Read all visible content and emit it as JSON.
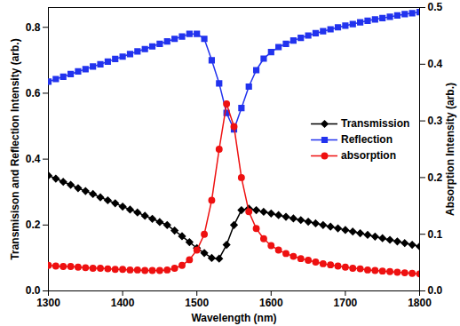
{
  "chart_data": {
    "type": "line",
    "x_label": "Wavelength (nm)",
    "y_label": "Transmisison and Reflection Intensity (arb.)",
    "y2_label": "Absorption Intensity (arb.)",
    "x": [
      1300,
      1310,
      1320,
      1330,
      1340,
      1350,
      1360,
      1370,
      1380,
      1390,
      1400,
      1410,
      1420,
      1430,
      1440,
      1450,
      1460,
      1470,
      1480,
      1490,
      1500,
      1510,
      1520,
      1530,
      1540,
      1550,
      1560,
      1570,
      1580,
      1590,
      1600,
      1610,
      1620,
      1630,
      1640,
      1650,
      1660,
      1670,
      1680,
      1690,
      1700,
      1710,
      1720,
      1730,
      1740,
      1750,
      1760,
      1770,
      1780,
      1790,
      1800
    ],
    "xlim": [
      1300,
      1800
    ],
    "xticks": [
      1300,
      1400,
      1500,
      1600,
      1700,
      1800
    ],
    "ylim": [
      0,
      0.86
    ],
    "yticks": [
      {
        "value": 0,
        "label": "0.0"
      },
      {
        "value": 0.2,
        "label": "0.2"
      },
      {
        "value": 0.4,
        "label": "0.4"
      },
      {
        "value": 0.6,
        "label": "0.6"
      },
      {
        "value": 0.8,
        "label": "0.8"
      }
    ],
    "y2lim": [
      0,
      0.5
    ],
    "y2ticks": [
      {
        "value": 0,
        "label": "0.0"
      },
      {
        "value": 0.1,
        "label": "0.1"
      },
      {
        "value": 0.2,
        "label": "0.2"
      },
      {
        "value": 0.3,
        "label": "0.3"
      },
      {
        "value": 0.4,
        "label": "0.4"
      },
      {
        "value": 0.5,
        "label": "0.5"
      }
    ],
    "legend": "right",
    "series": [
      {
        "name": "Transmission",
        "color": "#000000",
        "marker": "diamond",
        "values": [
          0.35,
          0.341,
          0.331,
          0.322,
          0.312,
          0.303,
          0.294,
          0.284,
          0.275,
          0.266,
          0.256,
          0.247,
          0.238,
          0.228,
          0.219,
          0.209,
          0.2,
          0.183,
          0.166,
          0.148,
          0.13,
          0.115,
          0.1,
          0.098,
          0.14,
          0.2,
          0.245,
          0.25,
          0.245,
          0.24,
          0.235,
          0.23,
          0.225,
          0.22,
          0.215,
          0.21,
          0.205,
          0.2,
          0.195,
          0.19,
          0.185,
          0.18,
          0.175,
          0.17,
          0.165,
          0.16,
          0.155,
          0.15,
          0.145,
          0.14,
          0.135
        ]
      },
      {
        "name": "Reflection",
        "color": "#2233ee",
        "marker": "square",
        "values": [
          0.635,
          0.643,
          0.65,
          0.658,
          0.666,
          0.673,
          0.681,
          0.688,
          0.696,
          0.704,
          0.711,
          0.719,
          0.727,
          0.734,
          0.742,
          0.75,
          0.757,
          0.765,
          0.772,
          0.78,
          0.78,
          0.765,
          0.7,
          0.63,
          0.54,
          0.49,
          0.555,
          0.62,
          0.67,
          0.705,
          0.725,
          0.74,
          0.75,
          0.76,
          0.768,
          0.775,
          0.782,
          0.788,
          0.794,
          0.8,
          0.805,
          0.81,
          0.815,
          0.82,
          0.824,
          0.828,
          0.832,
          0.836,
          0.84,
          0.843,
          0.846
        ]
      },
      {
        "name": "absorption",
        "color": "#ee1111",
        "marker": "circle",
        "axis": "y2",
        "values": [
          0.045,
          0.044,
          0.043,
          0.043,
          0.042,
          0.041,
          0.04,
          0.04,
          0.039,
          0.038,
          0.038,
          0.037,
          0.037,
          0.036,
          0.036,
          0.036,
          0.037,
          0.04,
          0.045,
          0.055,
          0.072,
          0.1,
          0.16,
          0.25,
          0.33,
          0.29,
          0.2,
          0.14,
          0.11,
          0.092,
          0.08,
          0.072,
          0.066,
          0.061,
          0.057,
          0.054,
          0.051,
          0.048,
          0.046,
          0.044,
          0.042,
          0.04,
          0.039,
          0.037,
          0.036,
          0.035,
          0.034,
          0.033,
          0.032,
          0.031,
          0.03
        ]
      }
    ]
  }
}
